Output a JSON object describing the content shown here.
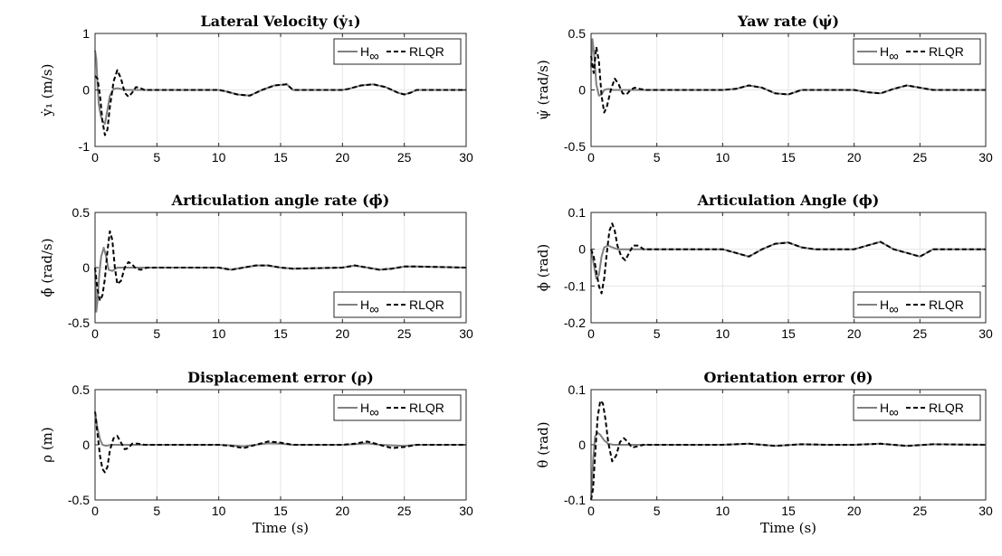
{
  "chart_data": [
    {
      "type": "line",
      "title": "Lateral Velocity (ẏ₁)",
      "ylabel": "ẏ₁ (m/s)",
      "xlabel": "",
      "xlim": [
        0,
        30
      ],
      "ylim": [
        -1,
        1
      ],
      "xticks": [
        "0",
        "5",
        "10",
        "15",
        "20",
        "25",
        "30"
      ],
      "yticks": [
        "-1",
        "0",
        "1"
      ],
      "grid": true,
      "legend_position": "top-right",
      "series": [
        {
          "name": "H∞",
          "color": "#808080",
          "dash": "none",
          "x": [
            0,
            0.1,
            0.2,
            0.3,
            0.45,
            0.6,
            0.8,
            1.0,
            1.2,
            1.5,
            1.8,
            2.1,
            2.5,
            3,
            4,
            5,
            10,
            10.5,
            11.5,
            12.5,
            13.5,
            14.5,
            15.5,
            16,
            20,
            20.5,
            21.5,
            22.5,
            23.5,
            24.5,
            25,
            25.5,
            26,
            30
          ],
          "y": [
            0.7,
            0.55,
            0.1,
            -0.25,
            -0.45,
            -0.55,
            -0.6,
            -0.35,
            -0.1,
            0.02,
            0.03,
            0.02,
            0,
            0,
            0,
            0,
            0,
            -0.02,
            -0.08,
            -0.1,
            0,
            0.08,
            0.1,
            0,
            0,
            0.02,
            0.08,
            0.1,
            0.05,
            -0.05,
            -0.08,
            -0.05,
            0,
            0
          ]
        },
        {
          "name": "RLQR",
          "color": "#000000",
          "dash": "5,3",
          "x": [
            0,
            0.2,
            0.4,
            0.6,
            0.8,
            1.0,
            1.2,
            1.5,
            1.8,
            2.1,
            2.4,
            2.7,
            3.0,
            3.3,
            3.6,
            4,
            5,
            10,
            10.5,
            11.5,
            12.5,
            13.5,
            14.5,
            15.5,
            16,
            20,
            20.5,
            21.5,
            22.5,
            23.5,
            24.5,
            25,
            25.5,
            26,
            30
          ],
          "y": [
            0.25,
            0.2,
            -0.1,
            -0.55,
            -0.8,
            -0.7,
            -0.3,
            0.15,
            0.35,
            0.2,
            -0.05,
            -0.12,
            -0.05,
            0.05,
            0.04,
            0,
            0,
            0,
            -0.02,
            -0.08,
            -0.1,
            0,
            0.08,
            0.1,
            0,
            0,
            0.02,
            0.08,
            0.1,
            0.05,
            -0.05,
            -0.08,
            -0.05,
            0,
            0
          ]
        }
      ]
    },
    {
      "type": "line",
      "title": "Yaw rate (ψ̇)",
      "ylabel": "ψ̇ (rad/s)",
      "xlabel": "",
      "xlim": [
        0,
        30
      ],
      "ylim": [
        -0.5,
        0.5
      ],
      "xticks": [
        "0",
        "5",
        "10",
        "15",
        "20",
        "25",
        "30"
      ],
      "yticks": [
        "-0.5",
        "0",
        "0.5"
      ],
      "grid": true,
      "legend_position": "top-right",
      "series": [
        {
          "name": "H∞",
          "color": "#808080",
          "dash": "none",
          "x": [
            0,
            0.1,
            0.25,
            0.4,
            0.6,
            0.8,
            1.0,
            1.3,
            1.6,
            2,
            3,
            5,
            10,
            11,
            12,
            13,
            14,
            15,
            16,
            20,
            21,
            22,
            23,
            24,
            25,
            26,
            30
          ],
          "y": [
            0.2,
            0.45,
            0.3,
            0.05,
            -0.05,
            -0.04,
            0,
            0.01,
            0,
            0,
            0,
            0,
            0,
            0.01,
            0.04,
            0.02,
            -0.03,
            -0.04,
            0,
            0,
            -0.02,
            -0.03,
            0.01,
            0.04,
            0.02,
            0,
            0
          ]
        },
        {
          "name": "RLQR",
          "color": "#000000",
          "dash": "5,3",
          "x": [
            0,
            0.2,
            0.4,
            0.6,
            0.8,
            1.0,
            1.2,
            1.5,
            1.8,
            2.1,
            2.4,
            2.7,
            3.0,
            3.3,
            3.7,
            4.2,
            5,
            10,
            11,
            12,
            13,
            14,
            15,
            16,
            20,
            21,
            22,
            23,
            24,
            25,
            26,
            30
          ],
          "y": [
            0.3,
            0.15,
            0.38,
            0.25,
            -0.05,
            -0.2,
            -0.15,
            0,
            0.1,
            0.05,
            -0.03,
            -0.04,
            0,
            0.02,
            0.01,
            0,
            0,
            0,
            0.01,
            0.04,
            0.02,
            -0.03,
            -0.04,
            0,
            0,
            -0.02,
            -0.03,
            0.01,
            0.04,
            0.02,
            0,
            0
          ]
        }
      ]
    },
    {
      "type": "line",
      "title": "Articulation angle rate (ϕ̇)",
      "ylabel": "ϕ̇ (rad/s)",
      "xlabel": "",
      "xlim": [
        0,
        30
      ],
      "ylim": [
        -0.5,
        0.5
      ],
      "xticks": [
        "0",
        "5",
        "10",
        "15",
        "20",
        "25",
        "30"
      ],
      "yticks": [
        "-0.5",
        "0",
        "0.5"
      ],
      "grid": true,
      "legend_position": "bottom-right",
      "series": [
        {
          "name": "H∞",
          "color": "#808080",
          "dash": "none",
          "x": [
            0,
            0.1,
            0.2,
            0.35,
            0.5,
            0.7,
            0.9,
            1.1,
            1.4,
            1.8,
            2.5,
            5,
            10,
            11,
            12,
            13,
            14,
            15,
            16,
            20,
            21,
            22,
            23,
            24,
            25,
            26,
            30
          ],
          "y": [
            0,
            -0.4,
            -0.3,
            -0.05,
            0.1,
            0.18,
            0.1,
            -0.02,
            -0.03,
            0,
            0,
            0,
            0,
            -0.02,
            0,
            0.02,
            0.02,
            0,
            -0.01,
            0,
            0.02,
            0,
            -0.02,
            -0.01,
            0.01,
            0.01,
            0
          ]
        },
        {
          "name": "RLQR",
          "color": "#000000",
          "dash": "5,3",
          "x": [
            0,
            0.2,
            0.4,
            0.6,
            0.8,
            1.0,
            1.2,
            1.4,
            1.6,
            1.8,
            2.1,
            2.4,
            2.7,
            3.0,
            3.3,
            3.7,
            4.2,
            5,
            10,
            11,
            12,
            13,
            14,
            15,
            16,
            20,
            21,
            22,
            23,
            24,
            25,
            26,
            30
          ],
          "y": [
            0,
            -0.2,
            -0.3,
            -0.25,
            -0.1,
            0.15,
            0.33,
            0.25,
            0,
            -0.15,
            -0.12,
            0,
            0.05,
            0.03,
            -0.01,
            -0.02,
            0,
            0,
            0,
            -0.02,
            0,
            0.02,
            0.02,
            0,
            -0.01,
            0,
            0.02,
            0,
            -0.02,
            -0.01,
            0.01,
            0.01,
            0
          ]
        }
      ]
    },
    {
      "type": "line",
      "title": "Articulation Angle (ϕ)",
      "ylabel": "ϕ (rad)",
      "xlabel": "",
      "xlim": [
        0,
        30
      ],
      "ylim": [
        -0.2,
        0.1
      ],
      "xticks": [
        "0",
        "5",
        "10",
        "15",
        "20",
        "25",
        "30"
      ],
      "yticks": [
        "-0.2",
        "-0.1",
        "0",
        "0.1"
      ],
      "grid": true,
      "legend_position": "bottom-right",
      "series": [
        {
          "name": "H∞",
          "color": "#808080",
          "dash": "none",
          "x": [
            0,
            0.2,
            0.4,
            0.6,
            0.8,
            1.0,
            1.3,
            1.6,
            2,
            3,
            5,
            10,
            11,
            12,
            13,
            14,
            15,
            16,
            17,
            20,
            21,
            22,
            23,
            24,
            25,
            26,
            30
          ],
          "y": [
            0,
            -0.04,
            -0.08,
            -0.07,
            -0.02,
            0.005,
            0.01,
            0.005,
            0,
            0,
            0,
            0,
            -0.01,
            -0.02,
            0,
            0.015,
            0.018,
            0.005,
            0,
            0,
            0.01,
            0.02,
            0,
            -0.01,
            -0.02,
            0,
            0
          ]
        },
        {
          "name": "RLQR",
          "color": "#000000",
          "dash": "5,3",
          "x": [
            0,
            0.2,
            0.4,
            0.6,
            0.8,
            1.0,
            1.2,
            1.4,
            1.6,
            1.8,
            2.0,
            2.3,
            2.6,
            2.9,
            3.2,
            3.6,
            4,
            5,
            10,
            11,
            12,
            13,
            14,
            15,
            16,
            17,
            20,
            21,
            22,
            23,
            24,
            25,
            26,
            30
          ],
          "y": [
            0,
            -0.02,
            -0.06,
            -0.1,
            -0.12,
            -0.08,
            -0.01,
            0.05,
            0.07,
            0.05,
            0.01,
            -0.02,
            -0.03,
            -0.01,
            0.01,
            0.01,
            0,
            0,
            0,
            -0.01,
            -0.02,
            0,
            0.015,
            0.018,
            0.005,
            0,
            0,
            0.01,
            0.02,
            0,
            -0.01,
            -0.02,
            0,
            0
          ]
        }
      ]
    },
    {
      "type": "line",
      "title": "Displacement error (ρ)",
      "ylabel": "ρ (m)",
      "xlabel": "Time (s)",
      "xlim": [
        0,
        30
      ],
      "ylim": [
        -0.5,
        0.5
      ],
      "xticks": [
        "0",
        "5",
        "10",
        "15",
        "20",
        "25",
        "30"
      ],
      "yticks": [
        "-0.5",
        "0",
        "0.5"
      ],
      "grid": true,
      "legend_position": "top-right",
      "series": [
        {
          "name": "H∞",
          "color": "#808080",
          "dash": "none",
          "x": [
            0,
            0.2,
            0.4,
            0.6,
            0.9,
            1.3,
            2,
            3,
            5,
            10,
            11,
            12,
            13,
            14,
            15,
            16,
            20,
            21,
            22,
            23,
            24,
            25,
            26,
            30
          ],
          "y": [
            0.3,
            0.15,
            0.05,
            0,
            -0.01,
            0,
            0,
            0,
            0,
            0,
            -0.005,
            -0.015,
            0,
            0.015,
            0.01,
            0,
            0,
            0.005,
            0.015,
            0,
            -0.005,
            -0.01,
            0,
            0
          ]
        },
        {
          "name": "RLQR",
          "color": "#000000",
          "dash": "5,3",
          "x": [
            0,
            0.2,
            0.4,
            0.6,
            0.8,
            1.0,
            1.2,
            1.5,
            1.8,
            2.1,
            2.4,
            2.7,
            3.0,
            3.5,
            4,
            5,
            10,
            11,
            12,
            13,
            14,
            15,
            16,
            20,
            21,
            22,
            23,
            24,
            25,
            26,
            30
          ],
          "y": [
            0.3,
            0.1,
            -0.1,
            -0.22,
            -0.25,
            -0.2,
            -0.05,
            0.06,
            0.08,
            0.02,
            -0.04,
            -0.03,
            0.01,
            0.01,
            0,
            0,
            0,
            -0.01,
            -0.03,
            0,
            0.03,
            0.02,
            0,
            0,
            0.01,
            0.03,
            0,
            -0.03,
            -0.02,
            0,
            0
          ]
        }
      ]
    },
    {
      "type": "line",
      "title": "Orientation error (θ)",
      "ylabel": "θ (rad)",
      "xlabel": "Time (s)",
      "xlim": [
        0,
        30
      ],
      "ylim": [
        -0.1,
        0.1
      ],
      "xticks": [
        "0",
        "5",
        "10",
        "15",
        "20",
        "25",
        "30"
      ],
      "yticks": [
        "-0.1",
        "0",
        "0.1"
      ],
      "grid": true,
      "legend_position": "top-right",
      "series": [
        {
          "name": "H∞",
          "color": "#808080",
          "dash": "none",
          "x": [
            0,
            0.15,
            0.3,
            0.5,
            0.7,
            1.0,
            1.3,
            1.7,
            2.2,
            3,
            5,
            10,
            12,
            14,
            16,
            18,
            20,
            22,
            24,
            26,
            30
          ],
          "y": [
            -0.1,
            -0.03,
            0.015,
            0.022,
            0.018,
            0.008,
            0.002,
            0,
            0,
            0,
            0,
            0,
            0.002,
            -0.002,
            0.001,
            0,
            0,
            0.002,
            -0.002,
            0.001,
            0
          ]
        },
        {
          "name": "RLQR",
          "color": "#000000",
          "dash": "5,3",
          "x": [
            0,
            0.15,
            0.3,
            0.5,
            0.7,
            0.9,
            1.1,
            1.3,
            1.6,
            1.9,
            2.2,
            2.5,
            2.8,
            3.1,
            3.5,
            4,
            5,
            10,
            12,
            14,
            16,
            18,
            20,
            22,
            24,
            26,
            30
          ],
          "y": [
            -0.1,
            -0.08,
            -0.02,
            0.05,
            0.08,
            0.075,
            0.045,
            0.005,
            -0.03,
            -0.02,
            0.005,
            0.012,
            0.005,
            -0.005,
            -0.003,
            0,
            0,
            0,
            0.002,
            -0.002,
            0.001,
            0,
            0,
            0.002,
            -0.002,
            0.001,
            0
          ]
        }
      ]
    }
  ]
}
